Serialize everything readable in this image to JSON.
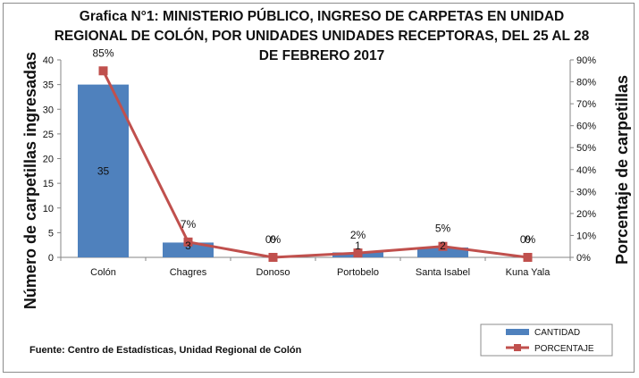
{
  "chart_data": {
    "type": "bar+line",
    "title": "Grafica N°1: MINISTERIO PÚBLICO, INGRESO DE CARPETAS EN UNIDAD REGIONAL DE COLÓN, POR UNIDADES UNIDADES RECEPTORAS, DEL 25 AL 28 DE FEBRERO 2017",
    "categories": [
      "Colón",
      "Chagres",
      "Donoso",
      "Portobelo",
      "Santa Isabel",
      "Kuna Yala"
    ],
    "series": [
      {
        "name": "CANTIDAD",
        "type": "bar",
        "axis": "left",
        "color": "#4f81bd",
        "values": [
          35,
          3,
          0,
          1,
          2,
          0
        ],
        "labels": [
          "35",
          "3",
          "0",
          "1",
          "2",
          "0"
        ]
      },
      {
        "name": "PORCENTAJE",
        "type": "line",
        "axis": "right",
        "color": "#c0504d",
        "values": [
          85,
          7,
          0,
          2,
          5,
          0
        ],
        "labels": [
          "85%",
          "7%",
          "0%",
          "2%",
          "5%",
          "0%"
        ]
      }
    ],
    "ylabel": "Número de carpetillas  ingresadas",
    "y2label": "Porcentaje de carpetillas",
    "ylim": [
      0,
      40
    ],
    "y2lim": [
      0,
      90
    ],
    "yticks": [
      "0",
      "5",
      "10",
      "15",
      "20",
      "25",
      "30",
      "35",
      "40"
    ],
    "y2ticks": [
      "0%",
      "10%",
      "20%",
      "30%",
      "40%",
      "50%",
      "60%",
      "70%",
      "80%",
      "90%"
    ],
    "grid": false,
    "legend_position": "bottom-right"
  },
  "source": "Fuente: Centro de Estadísticas,  Unidad Regional de Colón"
}
